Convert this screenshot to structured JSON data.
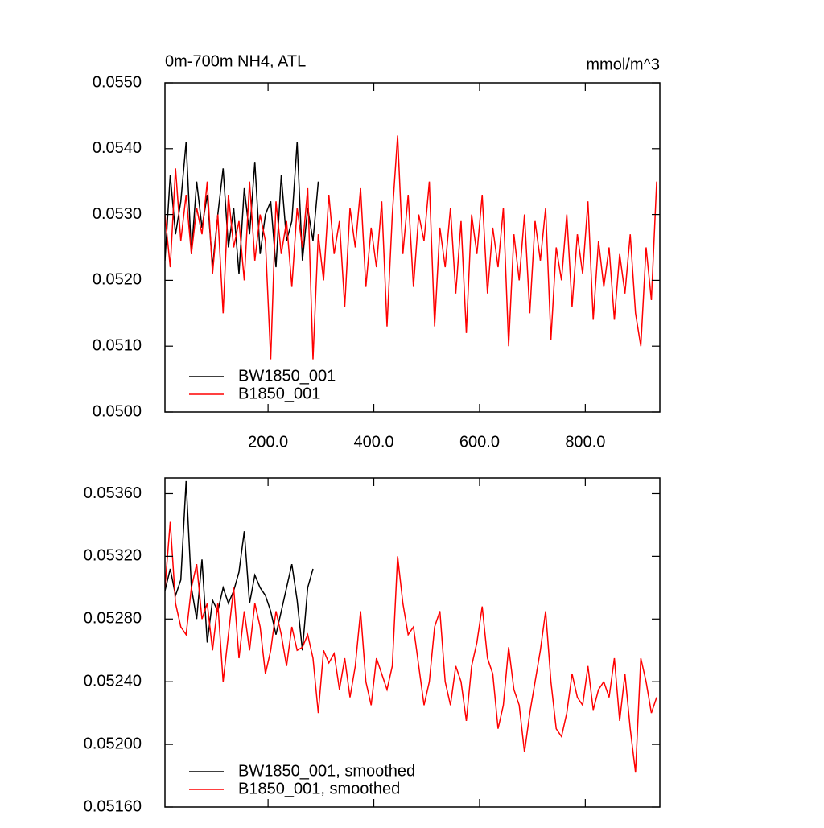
{
  "chart_data": [
    {
      "type": "line",
      "title": "0m-700m NH4, ATL",
      "units": "mmol/m^3",
      "legend": "lower left",
      "linewidth": 1.5,
      "xlim": [
        5,
        941
      ],
      "ylim": [
        0.05,
        0.055
      ],
      "xticks": [
        {
          "value": 200,
          "label": "200.0"
        },
        {
          "value": 400,
          "label": "400.0"
        },
        {
          "value": 600,
          "label": "600.0"
        },
        {
          "value": 800,
          "label": "800.0"
        }
      ],
      "yticks": [
        {
          "value": 0.05,
          "label": "0.0500"
        },
        {
          "value": 0.051,
          "label": "0.0510"
        },
        {
          "value": 0.052,
          "label": "0.0520"
        },
        {
          "value": 0.053,
          "label": "0.0530"
        },
        {
          "value": 0.054,
          "label": "0.0540"
        },
        {
          "value": 0.055,
          "label": "0.0550"
        }
      ],
      "series": [
        {
          "name": "BW1850_001",
          "color": "#000000",
          "x": [
            5,
            15,
            25,
            35,
            45,
            55,
            65,
            75,
            85,
            95,
            105,
            115,
            125,
            135,
            145,
            155,
            165,
            175,
            185,
            195,
            205,
            215,
            225,
            235,
            245,
            255,
            265,
            275,
            285,
            295
          ],
          "values": [
            0.0523,
            0.0536,
            0.0527,
            0.0532,
            0.0541,
            0.0524,
            0.0535,
            0.0528,
            0.0533,
            0.0522,
            0.053,
            0.0537,
            0.0525,
            0.0531,
            0.0521,
            0.0534,
            0.0527,
            0.0538,
            0.0524,
            0.053,
            0.0532,
            0.0522,
            0.0536,
            0.0526,
            0.0529,
            0.0541,
            0.0523,
            0.0531,
            0.0526,
            0.0535
          ]
        },
        {
          "name": "B1850_001",
          "color": "#ff0000",
          "x": [
            5,
            15,
            25,
            35,
            45,
            55,
            65,
            75,
            85,
            95,
            105,
            115,
            125,
            135,
            145,
            155,
            165,
            175,
            185,
            195,
            205,
            215,
            225,
            235,
            245,
            255,
            265,
            275,
            285,
            295,
            305,
            315,
            325,
            335,
            345,
            355,
            365,
            375,
            385,
            395,
            405,
            415,
            425,
            435,
            445,
            455,
            465,
            475,
            485,
            495,
            505,
            515,
            525,
            535,
            545,
            555,
            565,
            575,
            585,
            595,
            605,
            615,
            625,
            635,
            645,
            655,
            665,
            675,
            685,
            695,
            705,
            715,
            725,
            735,
            745,
            755,
            765,
            775,
            785,
            795,
            805,
            815,
            825,
            835,
            845,
            855,
            865,
            875,
            885,
            895,
            905,
            915,
            925,
            935
          ],
          "values": [
            0.053,
            0.0522,
            0.0537,
            0.0526,
            0.0533,
            0.0524,
            0.0531,
            0.0527,
            0.0535,
            0.0521,
            0.053,
            0.0515,
            0.0533,
            0.0525,
            0.0529,
            0.052,
            0.0535,
            0.0523,
            0.053,
            0.0526,
            0.0508,
            0.0532,
            0.0524,
            0.0529,
            0.0519,
            0.0531,
            0.0525,
            0.0534,
            0.0508,
            0.0527,
            0.052,
            0.0533,
            0.0524,
            0.0529,
            0.0516,
            0.0531,
            0.0525,
            0.0534,
            0.0519,
            0.0528,
            0.0522,
            0.0532,
            0.0513,
            0.053,
            0.0542,
            0.0524,
            0.0533,
            0.0519,
            0.053,
            0.0526,
            0.0535,
            0.0513,
            0.0528,
            0.0522,
            0.0531,
            0.0518,
            0.0529,
            0.0512,
            0.053,
            0.0524,
            0.0533,
            0.0518,
            0.0528,
            0.0522,
            0.0531,
            0.051,
            0.0527,
            0.052,
            0.053,
            0.0515,
            0.0529,
            0.0523,
            0.0531,
            0.0511,
            0.0525,
            0.052,
            0.053,
            0.0516,
            0.0527,
            0.0521,
            0.0532,
            0.0514,
            0.0526,
            0.0519,
            0.0525,
            0.0514,
            0.0524,
            0.0518,
            0.0527,
            0.0515,
            0.051,
            0.0525,
            0.0517,
            0.0535
          ]
        }
      ]
    },
    {
      "type": "line",
      "legend": "lower left",
      "linewidth": 1.5,
      "xlim": [
        5,
        941
      ],
      "ylim": [
        0.0516,
        0.0537
      ],
      "xticks": [
        200,
        400,
        600,
        800
      ],
      "yticks": [
        {
          "value": 0.0516,
          "label": "0.05160"
        },
        {
          "value": 0.052,
          "label": "0.05200"
        },
        {
          "value": 0.0524,
          "label": "0.05240"
        },
        {
          "value": 0.0528,
          "label": "0.05280"
        },
        {
          "value": 0.0532,
          "label": "0.05320"
        },
        {
          "value": 0.0536,
          "label": "0.05360"
        }
      ],
      "series": [
        {
          "name": "BW1850_001, smoothed",
          "color": "#000000",
          "x": [
            5,
            15,
            25,
            35,
            45,
            55,
            65,
            75,
            85,
            95,
            105,
            115,
            125,
            135,
            145,
            155,
            165,
            175,
            185,
            195,
            205,
            215,
            225,
            235,
            245,
            255,
            265,
            275,
            285
          ],
          "values": [
            0.05298,
            0.05312,
            0.05295,
            0.05305,
            0.05368,
            0.053,
            0.0528,
            0.05318,
            0.05265,
            0.05292,
            0.05285,
            0.053,
            0.0529,
            0.05298,
            0.0531,
            0.05336,
            0.0529,
            0.05308,
            0.053,
            0.05295,
            0.05285,
            0.0527,
            0.05285,
            0.053,
            0.05315,
            0.05292,
            0.0526,
            0.053,
            0.05312
          ]
        },
        {
          "name": "B1850_001, smoothed",
          "color": "#ff0000",
          "x": [
            5,
            15,
            25,
            35,
            45,
            55,
            65,
            75,
            85,
            95,
            105,
            115,
            125,
            135,
            145,
            155,
            165,
            175,
            185,
            195,
            205,
            215,
            225,
            235,
            245,
            255,
            265,
            275,
            285,
            295,
            305,
            315,
            325,
            335,
            345,
            355,
            365,
            375,
            385,
            395,
            405,
            415,
            425,
            435,
            445,
            455,
            465,
            475,
            485,
            495,
            505,
            515,
            525,
            535,
            545,
            555,
            565,
            575,
            585,
            595,
            605,
            615,
            625,
            635,
            645,
            655,
            665,
            675,
            685,
            695,
            705,
            715,
            725,
            735,
            745,
            755,
            765,
            775,
            785,
            795,
            805,
            815,
            825,
            835,
            845,
            855,
            865,
            875,
            885,
            895,
            905,
            915,
            925,
            935
          ],
          "values": [
            0.053,
            0.05342,
            0.0529,
            0.05275,
            0.0527,
            0.053,
            0.05315,
            0.0528,
            0.0529,
            0.0526,
            0.0529,
            0.0524,
            0.0527,
            0.053,
            0.05255,
            0.05285,
            0.0526,
            0.0529,
            0.05275,
            0.05245,
            0.0526,
            0.05285,
            0.0527,
            0.0525,
            0.05275,
            0.0526,
            0.05262,
            0.0527,
            0.05255,
            0.0522,
            0.0526,
            0.05252,
            0.05258,
            0.05235,
            0.05255,
            0.0523,
            0.0525,
            0.05285,
            0.0524,
            0.05225,
            0.05255,
            0.05245,
            0.05235,
            0.0525,
            0.0532,
            0.0529,
            0.0527,
            0.05275,
            0.0525,
            0.05225,
            0.0524,
            0.05275,
            0.05285,
            0.0524,
            0.05225,
            0.0525,
            0.0524,
            0.05215,
            0.0525,
            0.05265,
            0.05288,
            0.05255,
            0.05245,
            0.0521,
            0.05225,
            0.05262,
            0.05235,
            0.05225,
            0.05195,
            0.0522,
            0.0524,
            0.0526,
            0.05285,
            0.0524,
            0.0521,
            0.05205,
            0.0522,
            0.05245,
            0.0523,
            0.05225,
            0.0525,
            0.05222,
            0.05235,
            0.0524,
            0.0523,
            0.05255,
            0.05215,
            0.05245,
            0.0521,
            0.05182,
            0.05255,
            0.0524,
            0.0522,
            0.0523
          ]
        }
      ]
    }
  ]
}
